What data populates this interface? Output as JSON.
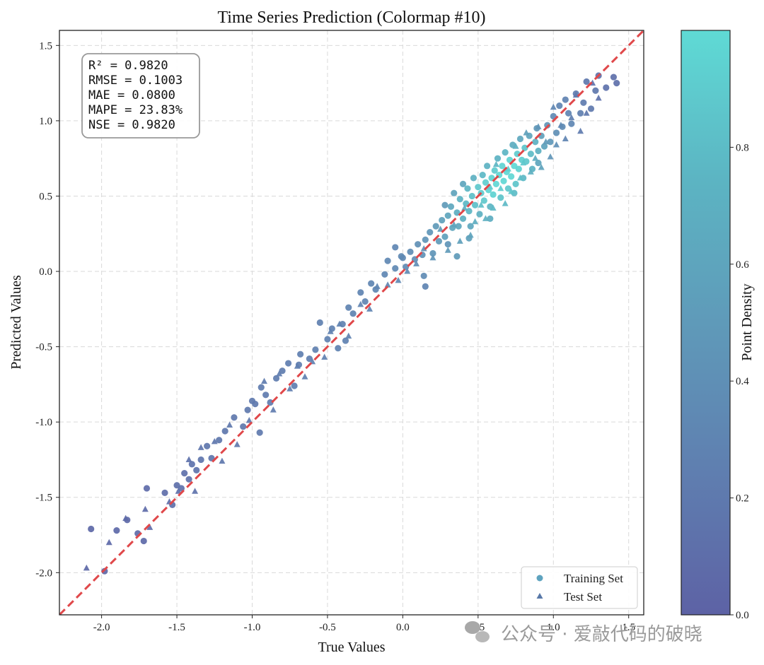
{
  "chart_data": {
    "type": "scatter",
    "title": "Time Series Prediction (Colormap #10)",
    "xlabel": "True Values",
    "ylabel": "Predicted Values",
    "xlim": [
      -2.28,
      1.6
    ],
    "ylim": [
      -2.28,
      1.6
    ],
    "xticks": [
      -2.0,
      -1.5,
      -1.0,
      -0.5,
      0.0,
      0.5,
      1.0,
      1.5
    ],
    "yticks": [
      -2.0,
      -1.5,
      -1.0,
      -0.5,
      0.0,
      0.5,
      1.0,
      1.5
    ],
    "tick_labels": [
      "-2.0",
      "-1.5",
      "-1.0",
      "-0.5",
      "0.0",
      "0.5",
      "1.0",
      "1.5"
    ],
    "grid": true,
    "reference_line": "y = x",
    "metrics": [
      "R² = 0.9820",
      "RMSE = 0.1003",
      "MAE = 0.0800",
      "MAPE = 23.83%",
      "NSE = 0.9820"
    ],
    "legend": {
      "position": "lower-right",
      "entries": [
        {
          "label": "Training Set",
          "marker": "circle"
        },
        {
          "label": "Test Set",
          "marker": "triangle"
        }
      ]
    },
    "colorbar": {
      "label": "Point Density",
      "range": [
        0.0,
        1.0
      ],
      "ticks": [
        0.0,
        0.2,
        0.4,
        0.6,
        0.8
      ],
      "tick_labels": [
        "0.0",
        "0.2",
        "0.4",
        "0.6",
        "0.8"
      ],
      "colors": [
        "#5d62a5",
        "#5f7fb0",
        "#5f9ab9",
        "#5cb5c3",
        "#5fdad5"
      ]
    },
    "series": [
      {
        "name": "Training Set",
        "marker": "circle",
        "points": [
          [
            -2.07,
            -1.71,
            0.05
          ],
          [
            -1.98,
            -1.99,
            0.05
          ],
          [
            -1.9,
            -1.72,
            0.06
          ],
          [
            -1.83,
            -1.65,
            0.07
          ],
          [
            -1.76,
            -1.74,
            0.07
          ],
          [
            -1.72,
            -1.79,
            0.06
          ],
          [
            -1.7,
            -1.44,
            0.08
          ],
          [
            -1.58,
            -1.47,
            0.1
          ],
          [
            -1.53,
            -1.55,
            0.12
          ],
          [
            -1.5,
            -1.42,
            0.12
          ],
          [
            -1.47,
            -1.44,
            0.13
          ],
          [
            -1.45,
            -1.34,
            0.13
          ],
          [
            -1.42,
            -1.38,
            0.14
          ],
          [
            -1.4,
            -1.28,
            0.15
          ],
          [
            -1.37,
            -1.32,
            0.15
          ],
          [
            -1.34,
            -1.25,
            0.16
          ],
          [
            -1.3,
            -1.16,
            0.17
          ],
          [
            -1.27,
            -1.24,
            0.17
          ],
          [
            -1.22,
            -1.12,
            0.18
          ],
          [
            -1.18,
            -1.06,
            0.18
          ],
          [
            -1.12,
            -0.97,
            0.19
          ],
          [
            -1.06,
            -1.03,
            0.19
          ],
          [
            -1.03,
            -0.92,
            0.2
          ],
          [
            -1.0,
            -0.86,
            0.2
          ],
          [
            -0.98,
            -0.88,
            0.21
          ],
          [
            -0.95,
            -1.07,
            0.2
          ],
          [
            -0.94,
            -0.77,
            0.22
          ],
          [
            -0.91,
            -0.82,
            0.22
          ],
          [
            -0.88,
            -0.87,
            0.22
          ],
          [
            -0.84,
            -0.71,
            0.23
          ],
          [
            -0.8,
            -0.66,
            0.23
          ],
          [
            -0.76,
            -0.61,
            0.24
          ],
          [
            -0.72,
            -0.76,
            0.24
          ],
          [
            -0.68,
            -0.55,
            0.25
          ],
          [
            -0.62,
            -0.58,
            0.25
          ],
          [
            -0.58,
            -0.52,
            0.26
          ],
          [
            -0.55,
            -0.34,
            0.26
          ],
          [
            -0.5,
            -0.45,
            0.27
          ],
          [
            -0.47,
            -0.38,
            0.27
          ],
          [
            -0.43,
            -0.51,
            0.28
          ],
          [
            -0.4,
            -0.35,
            0.28
          ],
          [
            -0.36,
            -0.24,
            0.29
          ],
          [
            -0.33,
            -0.28,
            0.29
          ],
          [
            -0.28,
            -0.14,
            0.3
          ],
          [
            -0.25,
            -0.2,
            0.3
          ],
          [
            -0.21,
            -0.08,
            0.31
          ],
          [
            -0.18,
            -0.12,
            0.31
          ],
          [
            -0.12,
            -0.02,
            0.32
          ],
          [
            -0.1,
            0.07,
            0.33
          ],
          [
            -0.05,
            0.02,
            0.34
          ],
          [
            -0.01,
            0.1,
            0.35
          ],
          [
            0.02,
            0.03,
            0.36
          ],
          [
            0.05,
            0.13,
            0.37
          ],
          [
            0.08,
            0.08,
            0.38
          ],
          [
            0.1,
            0.18,
            0.4
          ],
          [
            0.13,
            0.11,
            0.42
          ],
          [
            0.15,
            0.21,
            0.44
          ],
          [
            0.15,
            -0.1,
            0.3
          ],
          [
            0.18,
            0.26,
            0.46
          ],
          [
            0.2,
            0.12,
            0.45
          ],
          [
            0.22,
            0.3,
            0.5
          ],
          [
            0.24,
            0.2,
            0.5
          ],
          [
            0.26,
            0.34,
            0.55
          ],
          [
            0.28,
            0.23,
            0.55
          ],
          [
            0.28,
            0.44,
            0.5
          ],
          [
            0.3,
            0.37,
            0.6
          ],
          [
            0.3,
            0.18,
            0.45
          ],
          [
            0.32,
            0.43,
            0.62
          ],
          [
            0.33,
            0.29,
            0.6
          ],
          [
            0.34,
            0.52,
            0.58
          ],
          [
            0.36,
            0.39,
            0.68
          ],
          [
            0.37,
            0.3,
            0.62
          ],
          [
            0.38,
            0.48,
            0.72
          ],
          [
            0.4,
            0.35,
            0.7
          ],
          [
            0.4,
            0.58,
            0.6
          ],
          [
            0.42,
            0.45,
            0.78
          ],
          [
            0.43,
            0.55,
            0.75
          ],
          [
            0.44,
            0.4,
            0.75
          ],
          [
            0.45,
            0.3,
            0.62
          ],
          [
            0.46,
            0.5,
            0.82
          ],
          [
            0.47,
            0.62,
            0.7
          ],
          [
            0.48,
            0.44,
            0.82
          ],
          [
            0.5,
            0.56,
            0.88
          ],
          [
            0.51,
            0.38,
            0.7
          ],
          [
            0.52,
            0.52,
            0.9
          ],
          [
            0.53,
            0.64,
            0.78
          ],
          [
            0.54,
            0.47,
            0.88
          ],
          [
            0.55,
            0.59,
            0.92
          ],
          [
            0.56,
            0.7,
            0.72
          ],
          [
            0.57,
            0.54,
            0.95
          ],
          [
            0.58,
            0.43,
            0.75
          ],
          [
            0.59,
            0.62,
            0.95
          ],
          [
            0.6,
            0.51,
            0.95
          ],
          [
            0.61,
            0.67,
            0.9
          ],
          [
            0.62,
            0.58,
            0.98
          ],
          [
            0.63,
            0.75,
            0.72
          ],
          [
            0.64,
            0.64,
            0.98
          ],
          [
            0.65,
            0.49,
            0.85
          ],
          [
            0.66,
            0.7,
            0.95
          ],
          [
            0.67,
            0.6,
            0.98
          ],
          [
            0.68,
            0.79,
            0.75
          ],
          [
            0.69,
            0.66,
            0.98
          ],
          [
            0.7,
            0.55,
            0.88
          ],
          [
            0.71,
            0.74,
            0.95
          ],
          [
            0.72,
            0.63,
            0.98
          ],
          [
            0.73,
            0.84,
            0.68
          ],
          [
            0.74,
            0.7,
            0.98
          ],
          [
            0.75,
            0.58,
            0.85
          ],
          [
            0.76,
            0.78,
            0.9
          ],
          [
            0.77,
            0.68,
            0.95
          ],
          [
            0.78,
            0.88,
            0.62
          ],
          [
            0.79,
            0.74,
            0.92
          ],
          [
            0.8,
            0.62,
            0.78
          ],
          [
            0.81,
            0.82,
            0.85
          ],
          [
            0.82,
            0.73,
            0.88
          ],
          [
            0.84,
            0.9,
            0.6
          ],
          [
            0.85,
            0.78,
            0.8
          ],
          [
            0.86,
            0.68,
            0.72
          ],
          [
            0.88,
            0.86,
            0.7
          ],
          [
            0.89,
            0.95,
            0.48
          ],
          [
            0.9,
            0.8,
            0.7
          ],
          [
            0.92,
            0.9,
            0.55
          ],
          [
            0.94,
            0.83,
            0.58
          ],
          [
            0.96,
            0.97,
            0.45
          ],
          [
            0.98,
            0.86,
            0.48
          ],
          [
            1.0,
            1.03,
            0.35
          ],
          [
            1.02,
            0.92,
            0.4
          ],
          [
            1.04,
            1.1,
            0.3
          ],
          [
            1.06,
            0.96,
            0.36
          ],
          [
            1.08,
            1.14,
            0.28
          ],
          [
            1.1,
            1.05,
            0.3
          ],
          [
            1.12,
            0.98,
            0.32
          ],
          [
            1.15,
            1.18,
            0.22
          ],
          [
            1.18,
            1.05,
            0.25
          ],
          [
            1.2,
            1.12,
            0.22
          ],
          [
            1.22,
            1.26,
            0.18
          ],
          [
            1.25,
            1.08,
            0.2
          ],
          [
            1.28,
            1.2,
            0.18
          ],
          [
            1.3,
            1.3,
            0.14
          ],
          [
            1.35,
            1.22,
            0.14
          ],
          [
            1.4,
            1.29,
            0.12
          ],
          [
            1.42,
            1.25,
            0.12
          ],
          [
            0.0,
            0.09,
            0.34
          ],
          [
            -0.38,
            -0.46,
            0.27
          ],
          [
            -0.69,
            -0.62,
            0.24
          ],
          [
            0.14,
            -0.03,
            0.36
          ],
          [
            -0.05,
            0.16,
            0.32
          ],
          [
            0.36,
            0.1,
            0.5
          ],
          [
            0.44,
            0.22,
            0.55
          ],
          [
            0.58,
            0.35,
            0.68
          ],
          [
            0.74,
            0.52,
            0.8
          ],
          [
            0.9,
            0.72,
            0.6
          ]
        ]
      },
      {
        "name": "Test Set",
        "marker": "triangle",
        "points": [
          [
            -2.1,
            -1.97,
            0.05
          ],
          [
            -1.95,
            -1.8,
            0.06
          ],
          [
            -1.84,
            -1.64,
            0.07
          ],
          [
            -1.71,
            -1.58,
            0.08
          ],
          [
            -1.68,
            -1.7,
            0.08
          ],
          [
            -1.55,
            -1.53,
            0.11
          ],
          [
            -1.49,
            -1.46,
            0.12
          ],
          [
            -1.42,
            -1.25,
            0.14
          ],
          [
            -1.38,
            -1.46,
            0.14
          ],
          [
            -1.34,
            -1.17,
            0.16
          ],
          [
            -1.25,
            -1.13,
            0.17
          ],
          [
            -1.2,
            -1.26,
            0.18
          ],
          [
            -1.15,
            -1.02,
            0.19
          ],
          [
            -1.1,
            -1.15,
            0.19
          ],
          [
            -1.02,
            -0.99,
            0.2
          ],
          [
            -0.92,
            -0.73,
            0.22
          ],
          [
            -0.86,
            -0.92,
            0.22
          ],
          [
            -0.82,
            -0.68,
            0.23
          ],
          [
            -0.75,
            -0.78,
            0.24
          ],
          [
            -0.7,
            -0.63,
            0.24
          ],
          [
            -0.65,
            -0.7,
            0.25
          ],
          [
            -0.6,
            -0.6,
            0.26
          ],
          [
            -0.52,
            -0.57,
            0.26
          ],
          [
            -0.48,
            -0.4,
            0.27
          ],
          [
            -0.42,
            -0.35,
            0.28
          ],
          [
            -0.36,
            -0.43,
            0.28
          ],
          [
            -0.28,
            -0.22,
            0.3
          ],
          [
            -0.22,
            -0.25,
            0.3
          ],
          [
            -0.17,
            -0.1,
            0.31
          ],
          [
            -0.1,
            -0.09,
            0.32
          ],
          [
            -0.03,
            -0.06,
            0.34
          ],
          [
            0.03,
            -0.0,
            0.36
          ],
          [
            0.09,
            0.05,
            0.38
          ],
          [
            0.14,
            0.15,
            0.4
          ],
          [
            0.2,
            0.09,
            0.45
          ],
          [
            0.25,
            0.28,
            0.5
          ],
          [
            0.3,
            0.14,
            0.5
          ],
          [
            0.34,
            0.31,
            0.58
          ],
          [
            0.38,
            0.2,
            0.55
          ],
          [
            0.41,
            0.42,
            0.7
          ],
          [
            0.45,
            0.24,
            0.58
          ],
          [
            0.48,
            0.33,
            0.68
          ],
          [
            0.52,
            0.44,
            0.82
          ],
          [
            0.55,
            0.35,
            0.7
          ],
          [
            0.58,
            0.56,
            0.9
          ],
          [
            0.6,
            0.42,
            0.78
          ],
          [
            0.62,
            0.71,
            0.75
          ],
          [
            0.65,
            0.55,
            0.9
          ],
          [
            0.68,
            0.45,
            0.78
          ],
          [
            0.7,
            0.68,
            0.92
          ],
          [
            0.72,
            0.53,
            0.85
          ],
          [
            0.75,
            0.83,
            0.7
          ],
          [
            0.78,
            0.62,
            0.82
          ],
          [
            0.8,
            0.72,
            0.88
          ],
          [
            0.82,
            0.92,
            0.55
          ],
          [
            0.85,
            0.66,
            0.7
          ],
          [
            0.88,
            0.75,
            0.65
          ],
          [
            0.9,
            0.96,
            0.45
          ],
          [
            0.92,
            0.69,
            0.58
          ],
          [
            0.95,
            0.86,
            0.5
          ],
          [
            0.98,
            0.76,
            0.45
          ],
          [
            1.0,
            1.09,
            0.32
          ],
          [
            1.02,
            0.84,
            0.4
          ],
          [
            1.05,
            0.97,
            0.35
          ],
          [
            1.08,
            0.88,
            0.3
          ],
          [
            1.12,
            1.02,
            0.25
          ],
          [
            1.15,
            1.17,
            0.2
          ],
          [
            1.18,
            0.93,
            0.22
          ],
          [
            1.22,
            1.05,
            0.18
          ],
          [
            1.26,
            1.25,
            0.15
          ],
          [
            1.3,
            1.15,
            0.14
          ]
        ]
      }
    ]
  },
  "watermark": "公众号 · 爱敲代码的破晓"
}
